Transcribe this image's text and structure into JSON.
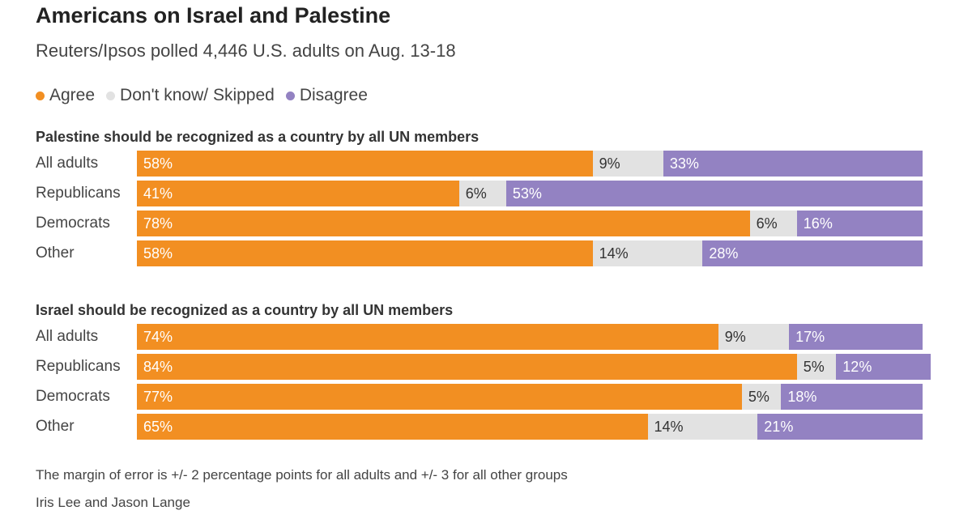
{
  "title": "Americans on Israel and Palestine",
  "subtitle": "Reuters/Ipsos polled 4,446 U.S. adults on Aug. 13-18",
  "legend": [
    {
      "label": "Agree",
      "color": "#f28f22"
    },
    {
      "label": "Don't know/ Skipped",
      "color": "#e2e2e2"
    },
    {
      "label": "Disagree",
      "color": "#9382c2"
    }
  ],
  "chart_data": [
    {
      "type": "bar",
      "stacked": true,
      "orientation": "horizontal",
      "title": "Palestine should be recognized as a country by all UN members",
      "categories": [
        "All adults",
        "Republicans",
        "Democrats",
        "Other"
      ],
      "series": [
        {
          "name": "Agree",
          "values": [
            58,
            41,
            78,
            58
          ],
          "labels": [
            "58%",
            "41%",
            "78%",
            "58%"
          ]
        },
        {
          "name": "Don't know/ Skipped",
          "values": [
            9,
            6,
            6,
            14
          ],
          "labels": [
            "9%",
            "6%",
            "6%",
            "14%"
          ]
        },
        {
          "name": "Disagree",
          "values": [
            33,
            53,
            16,
            28
          ],
          "labels": [
            "33%",
            "53%",
            "16%",
            "28%"
          ]
        }
      ],
      "xlim": [
        0,
        100
      ]
    },
    {
      "type": "bar",
      "stacked": true,
      "orientation": "horizontal",
      "title": "Israel should be recognized as a country by all UN members",
      "categories": [
        "All adults",
        "Republicans",
        "Democrats",
        "Other"
      ],
      "series": [
        {
          "name": "Agree",
          "values": [
            74,
            84,
            77,
            65
          ],
          "labels": [
            "74%",
            "84%",
            "77%",
            "65%"
          ]
        },
        {
          "name": "Don't know/ Skipped",
          "values": [
            9,
            5,
            5,
            14
          ],
          "labels": [
            "9%",
            "5%",
            "5%",
            "14%"
          ]
        },
        {
          "name": "Disagree",
          "values": [
            17,
            12,
            18,
            21
          ],
          "labels": [
            "17%",
            "12%",
            "18%",
            "21%"
          ]
        }
      ],
      "xlim": [
        0,
        100
      ]
    }
  ],
  "footnote": "The margin of error is +/- 2 percentage points for all adults and +/- 3 for all other groups",
  "credit": "Iris Lee and Jason Lange"
}
